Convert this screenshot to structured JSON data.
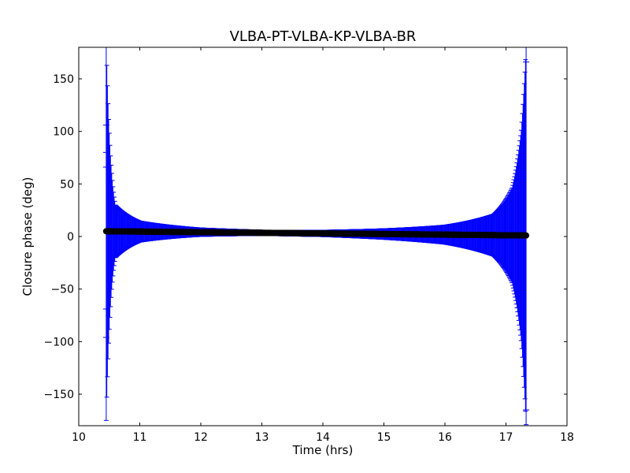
{
  "chart_data": {
    "type": "scatter",
    "title": "VLBA-PT-VLBA-KP-VLBA-BR",
    "xlabel": "Time (hrs)",
    "ylabel": "Closure phase (deg)",
    "xlim": [
      10,
      18
    ],
    "ylim": [
      -180,
      180
    ],
    "x_ticks": [
      10,
      11,
      12,
      13,
      14,
      15,
      16,
      17,
      18
    ],
    "y_ticks": [
      -150,
      -100,
      -50,
      0,
      50,
      100,
      150
    ],
    "x_tick_labels": [
      "10",
      "11",
      "12",
      "13",
      "14",
      "15",
      "16",
      "17",
      "18"
    ],
    "y_tick_labels": [
      "−150",
      "−100",
      "−50",
      "0",
      "50",
      "100",
      "150"
    ],
    "grid": false,
    "series": [
      {
        "type": "errorbar",
        "color": "#0000ff",
        "marker_color": "#000000",
        "x_start": 10.45,
        "x_end": 17.33,
        "n_points": 690,
        "y_start": 5,
        "y_end": 1,
        "sample_errors": [
          {
            "x": 10.45,
            "err": 180
          },
          {
            "x": 10.6,
            "err": 25
          },
          {
            "x": 11.0,
            "err": 10
          },
          {
            "x": 12.0,
            "err": 4
          },
          {
            "x": 13.0,
            "err": 2.5
          },
          {
            "x": 14.0,
            "err": 3
          },
          {
            "x": 15.0,
            "err": 5
          },
          {
            "x": 16.0,
            "err": 9
          },
          {
            "x": 16.8,
            "err": 20
          },
          {
            "x": 17.1,
            "err": 45
          },
          {
            "x": 17.25,
            "err": 100
          },
          {
            "x": 17.33,
            "err": 180
          }
        ],
        "outlier_caps": [
          {
            "x": 10.45,
            "values": [
              106,
              80,
              66,
              -69,
              -96
            ]
          },
          {
            "x": 17.33,
            "values": [
              166,
              -165
            ]
          }
        ]
      }
    ]
  }
}
